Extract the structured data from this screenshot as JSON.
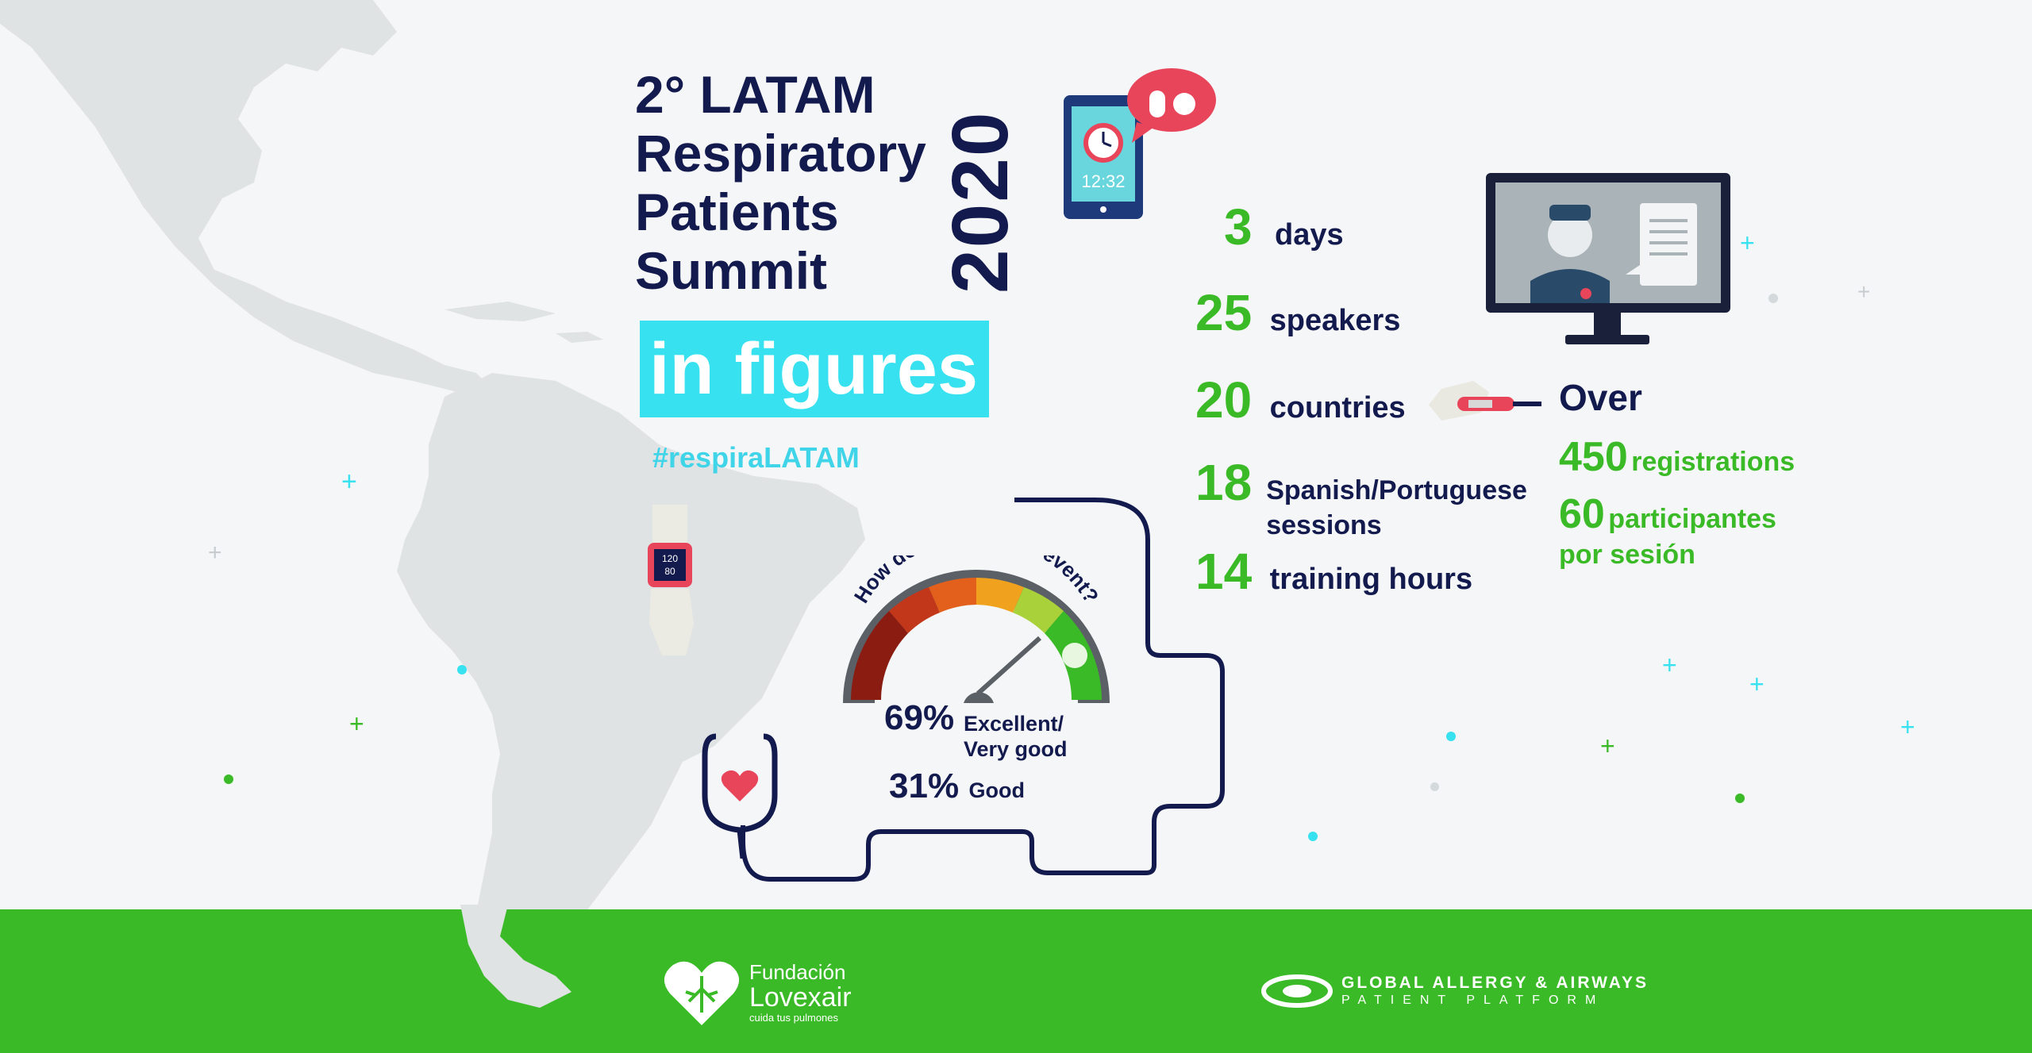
{
  "header": {
    "title_lines": [
      "2° LATAM",
      "Respiratory",
      "Patients",
      "Summit"
    ],
    "year": "2020",
    "subtitle": "in figures",
    "hashtag": "#respiraLATAM"
  },
  "icons": {
    "tablet_clock_time": "12:32",
    "watch_reading_top": "120",
    "watch_reading_bottom": "80"
  },
  "stats": [
    {
      "num": "3",
      "label": "days"
    },
    {
      "num": "25",
      "label": "speakers"
    },
    {
      "num": "20",
      "label": "countries"
    },
    {
      "num": "18",
      "label": "Spanish/Portuguese sessions"
    },
    {
      "num": "14",
      "label": "training hours"
    }
  ],
  "registrations": {
    "over_label": "Over",
    "reg_num": "450",
    "reg_label": "registrations",
    "part_num": "60",
    "part_label_1": "participantes",
    "part_label_2": "por sesión"
  },
  "rating": {
    "question": "How do you rate the event?",
    "excellent_pct": "69%",
    "excellent_label_1": "Excellent/",
    "excellent_label_2": "Very good",
    "good_pct": "31%",
    "good_label": "Good"
  },
  "footer": {
    "fundacion_line1": "Fundación",
    "fundacion_line2": "Lovexair",
    "fundacion_tagline": "cuida tus pulmones",
    "gaapp_line1": "GLOBAL ALLERGY & AIRWAYS",
    "gaapp_line2": "PATIENT PLATFORM"
  },
  "colors": {
    "navy": "#131a4e",
    "green": "#3bba27",
    "cyan": "#38e1ef",
    "map": "#dfe3e4"
  }
}
